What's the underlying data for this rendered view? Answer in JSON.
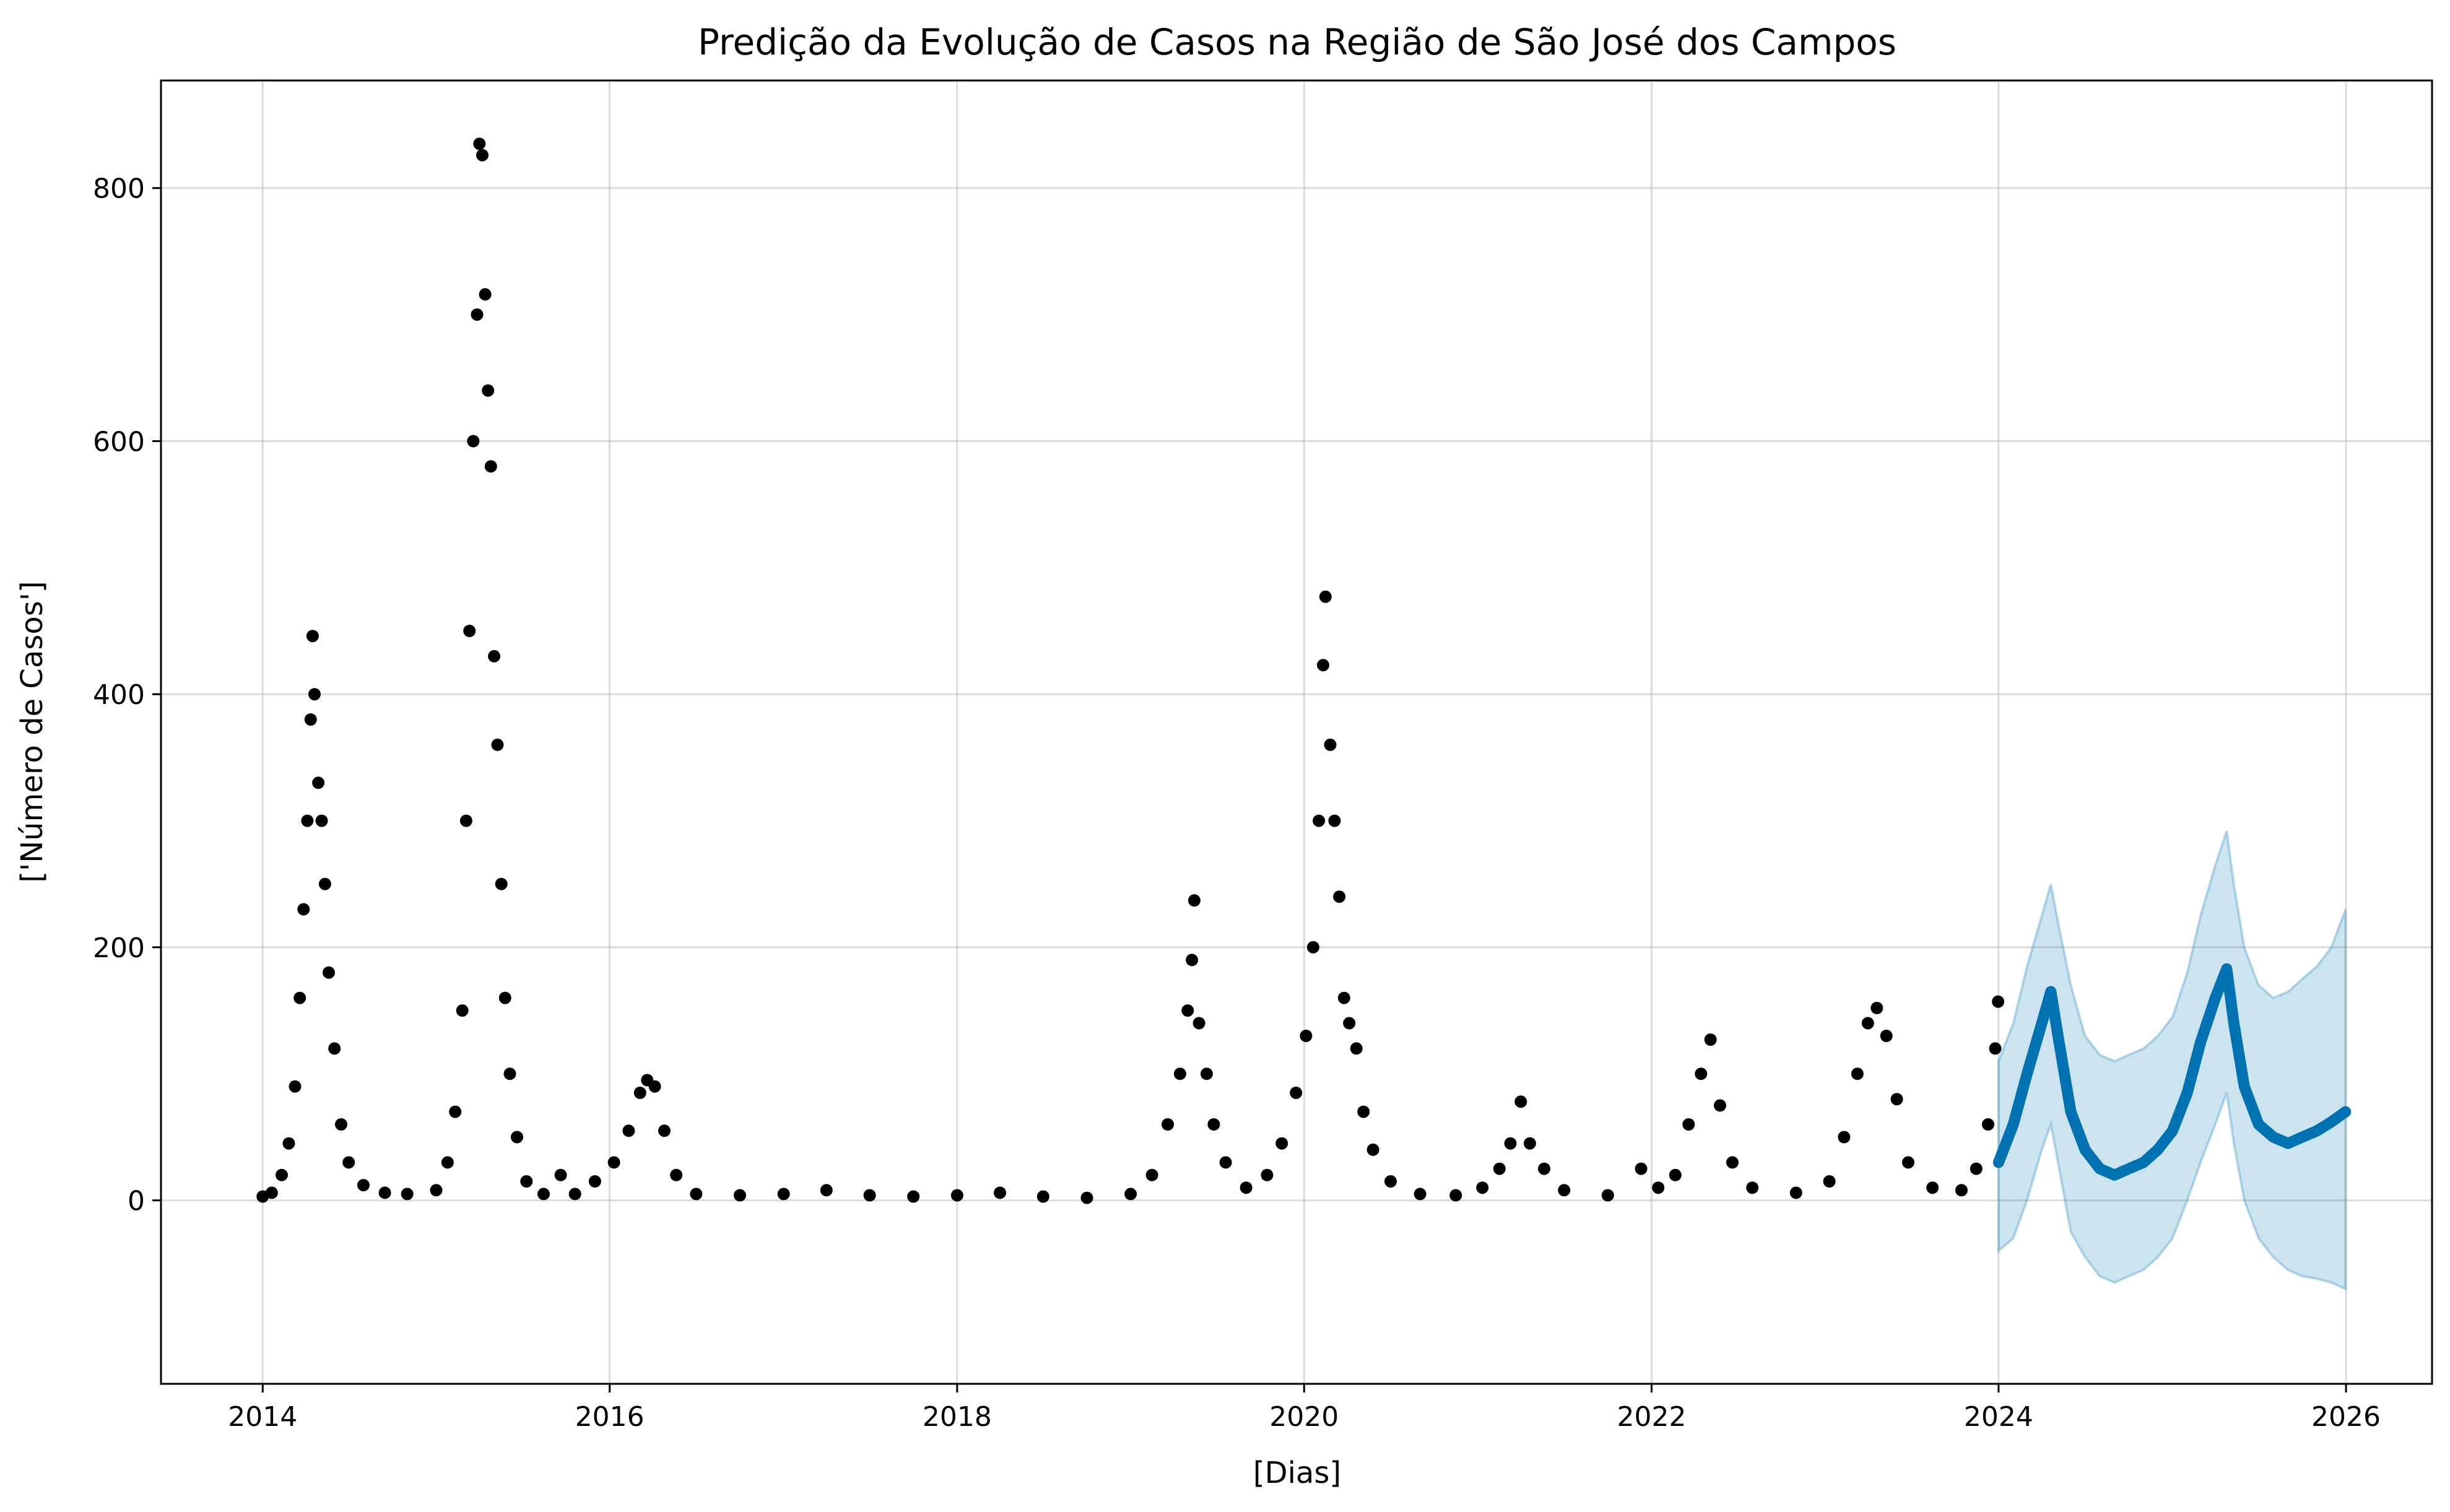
{
  "chart_data": {
    "type": "scatter",
    "title": "Predição da Evolução de Casos na Região de São José dos Campos",
    "xlabel": "[Dias]",
    "ylabel": "['Número de Casos']",
    "xlim": [
      "2013-06-01",
      "2026-07-01"
    ],
    "ylim": [
      -145,
      885
    ],
    "x_ticks": [
      {
        "date": "2014-01-01",
        "label": "2014"
      },
      {
        "date": "2016-01-01",
        "label": "2016"
      },
      {
        "date": "2018-01-01",
        "label": "2018"
      },
      {
        "date": "2020-01-01",
        "label": "2020"
      },
      {
        "date": "2022-01-01",
        "label": "2022"
      },
      {
        "date": "2024-01-01",
        "label": "2024"
      },
      {
        "date": "2026-01-01",
        "label": "2026"
      }
    ],
    "y_ticks": [
      {
        "value": 0,
        "label": "0"
      },
      {
        "value": 200,
        "label": "200"
      },
      {
        "value": 400,
        "label": "400"
      },
      {
        "value": 600,
        "label": "600"
      },
      {
        "value": 800,
        "label": "800"
      }
    ],
    "grid": true,
    "legend": "none",
    "colors": {
      "observed": "#000000",
      "forecast": "#0072B2",
      "interval": "#0072B2"
    },
    "series": [
      {
        "kind": "observed_points",
        "points": [
          [
            "2014-01-01",
            3
          ],
          [
            "2014-01-20",
            6
          ],
          [
            "2014-02-10",
            20
          ],
          [
            "2014-02-25",
            45
          ],
          [
            "2014-03-10",
            90
          ],
          [
            "2014-03-20",
            160
          ],
          [
            "2014-03-28",
            230
          ],
          [
            "2014-04-05",
            300
          ],
          [
            "2014-04-12",
            380
          ],
          [
            "2014-04-16",
            446
          ],
          [
            "2014-04-20",
            400
          ],
          [
            "2014-04-28",
            330
          ],
          [
            "2014-05-05",
            300
          ],
          [
            "2014-05-12",
            250
          ],
          [
            "2014-05-20",
            180
          ],
          [
            "2014-06-01",
            120
          ],
          [
            "2014-06-15",
            60
          ],
          [
            "2014-07-01",
            30
          ],
          [
            "2014-08-01",
            12
          ],
          [
            "2014-09-15",
            6
          ],
          [
            "2014-11-01",
            5
          ],
          [
            "2015-01-01",
            8
          ],
          [
            "2015-01-25",
            30
          ],
          [
            "2015-02-10",
            70
          ],
          [
            "2015-02-25",
            150
          ],
          [
            "2015-03-05",
            300
          ],
          [
            "2015-03-12",
            450
          ],
          [
            "2015-03-20",
            600
          ],
          [
            "2015-03-28",
            700
          ],
          [
            "2015-04-02",
            835
          ],
          [
            "2015-04-08",
            826
          ],
          [
            "2015-04-14",
            716
          ],
          [
            "2015-04-20",
            640
          ],
          [
            "2015-04-26",
            580
          ],
          [
            "2015-05-03",
            430
          ],
          [
            "2015-05-10",
            360
          ],
          [
            "2015-05-18",
            250
          ],
          [
            "2015-05-26",
            160
          ],
          [
            "2015-06-05",
            100
          ],
          [
            "2015-06-20",
            50
          ],
          [
            "2015-07-10",
            15
          ],
          [
            "2015-08-15",
            5
          ],
          [
            "2015-09-20",
            20
          ],
          [
            "2015-10-20",
            5
          ],
          [
            "2015-12-01",
            15
          ],
          [
            "2016-01-10",
            30
          ],
          [
            "2016-02-10",
            55
          ],
          [
            "2016-03-05",
            85
          ],
          [
            "2016-03-20",
            95
          ],
          [
            "2016-04-05",
            90
          ],
          [
            "2016-04-25",
            55
          ],
          [
            "2016-05-20",
            20
          ],
          [
            "2016-07-01",
            5
          ],
          [
            "2016-10-01",
            4
          ],
          [
            "2017-01-01",
            5
          ],
          [
            "2017-04-01",
            8
          ],
          [
            "2017-07-01",
            4
          ],
          [
            "2017-10-01",
            3
          ],
          [
            "2018-01-01",
            4
          ],
          [
            "2018-04-01",
            6
          ],
          [
            "2018-07-01",
            3
          ],
          [
            "2018-10-01",
            2
          ],
          [
            "2019-01-01",
            5
          ],
          [
            "2019-02-15",
            20
          ],
          [
            "2019-03-20",
            60
          ],
          [
            "2019-04-15",
            100
          ],
          [
            "2019-05-01",
            150
          ],
          [
            "2019-05-10",
            190
          ],
          [
            "2019-05-15",
            237
          ],
          [
            "2019-05-25",
            140
          ],
          [
            "2019-06-10",
            100
          ],
          [
            "2019-06-25",
            60
          ],
          [
            "2019-07-20",
            30
          ],
          [
            "2019-09-01",
            10
          ],
          [
            "2019-10-15",
            20
          ],
          [
            "2019-11-15",
            45
          ],
          [
            "2019-12-15",
            85
          ],
          [
            "2020-01-05",
            130
          ],
          [
            "2020-01-20",
            200
          ],
          [
            "2020-02-01",
            300
          ],
          [
            "2020-02-10",
            423
          ],
          [
            "2020-02-15",
            477
          ],
          [
            "2020-02-25",
            360
          ],
          [
            "2020-03-05",
            300
          ],
          [
            "2020-03-15",
            240
          ],
          [
            "2020-03-25",
            160
          ],
          [
            "2020-04-05",
            140
          ],
          [
            "2020-04-20",
            120
          ],
          [
            "2020-05-05",
            70
          ],
          [
            "2020-05-25",
            40
          ],
          [
            "2020-07-01",
            15
          ],
          [
            "2020-09-01",
            5
          ],
          [
            "2020-11-15",
            4
          ],
          [
            "2021-01-10",
            10
          ],
          [
            "2021-02-15",
            25
          ],
          [
            "2021-03-10",
            45
          ],
          [
            "2021-04-01",
            78
          ],
          [
            "2021-04-20",
            45
          ],
          [
            "2021-05-20",
            25
          ],
          [
            "2021-07-01",
            8
          ],
          [
            "2021-10-01",
            4
          ],
          [
            "2021-12-10",
            25
          ],
          [
            "2022-01-15",
            10
          ],
          [
            "2022-02-20",
            20
          ],
          [
            "2022-03-20",
            60
          ],
          [
            "2022-04-15",
            100
          ],
          [
            "2022-05-05",
            127
          ],
          [
            "2022-05-25",
            75
          ],
          [
            "2022-06-20",
            30
          ],
          [
            "2022-08-01",
            10
          ],
          [
            "2022-11-01",
            6
          ],
          [
            "2023-01-10",
            15
          ],
          [
            "2023-02-10",
            50
          ],
          [
            "2023-03-10",
            100
          ],
          [
            "2023-04-01",
            140
          ],
          [
            "2023-04-20",
            152
          ],
          [
            "2023-05-10",
            130
          ],
          [
            "2023-06-01",
            80
          ],
          [
            "2023-06-25",
            30
          ],
          [
            "2023-08-15",
            10
          ],
          [
            "2023-10-15",
            8
          ],
          [
            "2023-11-15",
            25
          ],
          [
            "2023-12-10",
            60
          ],
          [
            "2023-12-25",
            120
          ],
          [
            "2023-12-31",
            157
          ]
        ]
      },
      {
        "kind": "forecast",
        "points": [
          [
            "2024-01-01",
            30
          ],
          [
            "2024-02-01",
            60
          ],
          [
            "2024-03-01",
            100
          ],
          [
            "2024-04-01",
            140
          ],
          [
            "2024-04-20",
            165
          ],
          [
            "2024-05-05",
            130
          ],
          [
            "2024-06-01",
            70
          ],
          [
            "2024-07-01",
            40
          ],
          [
            "2024-08-01",
            25
          ],
          [
            "2024-09-01",
            20
          ],
          [
            "2024-10-01",
            25
          ],
          [
            "2024-11-01",
            30
          ],
          [
            "2024-12-01",
            40
          ],
          [
            "2025-01-01",
            55
          ],
          [
            "2025-02-01",
            85
          ],
          [
            "2025-03-01",
            125
          ],
          [
            "2025-04-01",
            160
          ],
          [
            "2025-04-25",
            183
          ],
          [
            "2025-05-10",
            140
          ],
          [
            "2025-06-01",
            90
          ],
          [
            "2025-07-01",
            60
          ],
          [
            "2025-08-01",
            50
          ],
          [
            "2025-09-01",
            45
          ],
          [
            "2025-10-01",
            50
          ],
          [
            "2025-11-01",
            55
          ],
          [
            "2025-12-01",
            62
          ],
          [
            "2025-12-31",
            70
          ]
        ],
        "lower": [
          -40,
          -30,
          0,
          40,
          60,
          30,
          -25,
          -45,
          -60,
          -65,
          -60,
          -55,
          -45,
          -30,
          0,
          30,
          60,
          85,
          45,
          0,
          -30,
          -45,
          -55,
          -60,
          -62,
          -65,
          -70
        ],
        "upper": [
          110,
          140,
          185,
          225,
          250,
          220,
          170,
          130,
          115,
          110,
          115,
          120,
          130,
          145,
          180,
          225,
          265,
          292,
          250,
          200,
          170,
          160,
          165,
          175,
          185,
          200,
          230
        ]
      }
    ]
  }
}
